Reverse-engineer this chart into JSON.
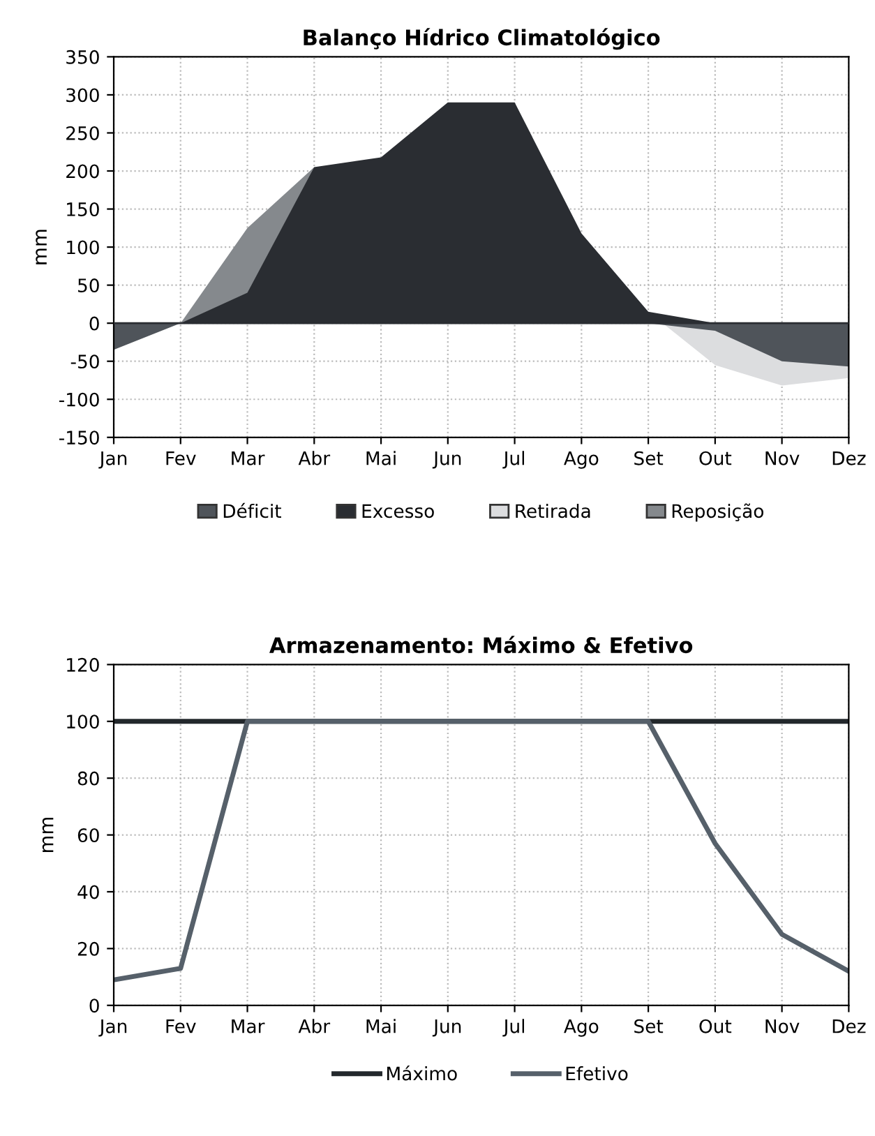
{
  "chart_data": [
    {
      "type": "area",
      "title": "Balanço Hídrico Climatológico",
      "ylabel": "mm",
      "categories": [
        "Jan",
        "Fev",
        "Mar",
        "Abr",
        "Mai",
        "Jun",
        "Jul",
        "Ago",
        "Set",
        "Out",
        "Nov",
        "Dez"
      ],
      "series": [
        {
          "name": "Déficit",
          "color": "#4f545a",
          "values": [
            -35,
            0,
            0,
            0,
            0,
            0,
            0,
            0,
            0,
            -10,
            -50,
            -57
          ]
        },
        {
          "name": "Excesso",
          "color": "#2a2d32",
          "values": [
            0,
            0,
            40,
            205,
            218,
            290,
            290,
            118,
            15,
            0,
            0,
            0
          ]
        },
        {
          "name": "Retirada",
          "color": "#dcdddf",
          "values": [
            0,
            0,
            0,
            0,
            0,
            0,
            0,
            0,
            15,
            -55,
            -82,
            -72
          ]
        },
        {
          "name": "Reposição",
          "color": "#85898d",
          "values": [
            0,
            0,
            125,
            205,
            0,
            0,
            0,
            0,
            0,
            0,
            0,
            0
          ]
        }
      ],
      "ylim": [
        -150,
        350
      ],
      "yticks": [
        -150,
        -100,
        -50,
        0,
        50,
        100,
        150,
        200,
        250,
        300,
        350
      ],
      "grid": true,
      "legend": "bottom"
    },
    {
      "type": "line",
      "title": "Armazenamento: Máximo & Efetivo",
      "ylabel": "mm",
      "categories": [
        "Jan",
        "Fev",
        "Mar",
        "Abr",
        "Mai",
        "Jun",
        "Jul",
        "Ago",
        "Set",
        "Out",
        "Nov",
        "Dez"
      ],
      "series": [
        {
          "name": "Máximo",
          "color": "#23282c",
          "values": [
            100,
            100,
            100,
            100,
            100,
            100,
            100,
            100,
            100,
            100,
            100,
            100
          ]
        },
        {
          "name": "Efetivo",
          "color": "#56606a",
          "values": [
            9,
            13,
            100,
            100,
            100,
            100,
            100,
            100,
            100,
            57,
            25,
            12
          ]
        }
      ],
      "ylim": [
        0,
        120
      ],
      "yticks": [
        0,
        20,
        40,
        60,
        80,
        100,
        120
      ],
      "grid": true,
      "legend": "bottom",
      "marker": "none",
      "line_style": "solid"
    }
  ]
}
